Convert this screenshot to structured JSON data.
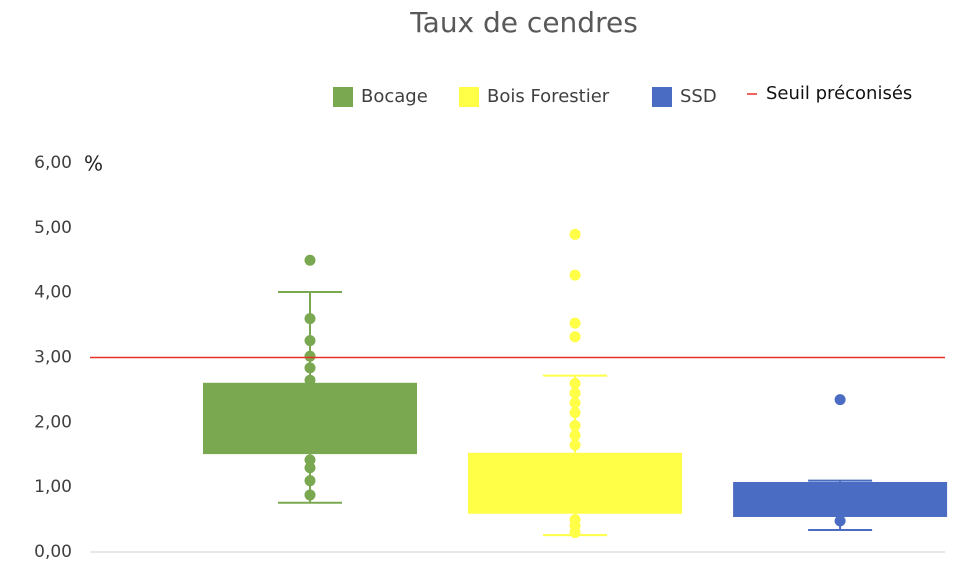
{
  "chart_data": {
    "type": "box",
    "title": "Taux de cendres",
    "ylabel": "%",
    "ylim": [
      0,
      6
    ],
    "yticks": [
      {
        "value": 0,
        "label": "0,00"
      },
      {
        "value": 1,
        "label": "1,00"
      },
      {
        "value": 2,
        "label": "2,00"
      },
      {
        "value": 3,
        "label": "3,00"
      },
      {
        "value": 4,
        "label": "4,00"
      },
      {
        "value": 5,
        "label": "5,00"
      },
      {
        "value": 6,
        "label": "6,00"
      }
    ],
    "grid": false,
    "legend": "top-right",
    "series": [
      {
        "name": "Bocage",
        "color": "#7aa851",
        "whisker_low": 0.76,
        "q1": 1.51,
        "q3": 2.61,
        "whisker_high": 4.01,
        "points": [
          4.5,
          3.6,
          3.26,
          3.02,
          2.84,
          2.65,
          1.42,
          1.3,
          1.1,
          0.88
        ]
      },
      {
        "name": "Bois Forestier",
        "color": "#ffff47",
        "whisker_low": 0.26,
        "q1": 0.59,
        "q3": 1.53,
        "whisker_high": 2.72,
        "points": [
          4.9,
          4.27,
          3.53,
          3.32,
          2.6,
          2.45,
          2.3,
          2.15,
          1.95,
          1.8,
          1.65,
          0.5,
          0.4,
          0.3
        ]
      },
      {
        "name": "SSD",
        "color": "#4a6cc2",
        "whisker_low": 0.34,
        "q1": 0.54,
        "q3": 1.08,
        "whisker_high": 1.1,
        "points": [
          2.35,
          0.48
        ]
      }
    ],
    "threshold": {
      "name": "Seuil préconisés",
      "value": 3,
      "color": "#e8302a"
    }
  }
}
